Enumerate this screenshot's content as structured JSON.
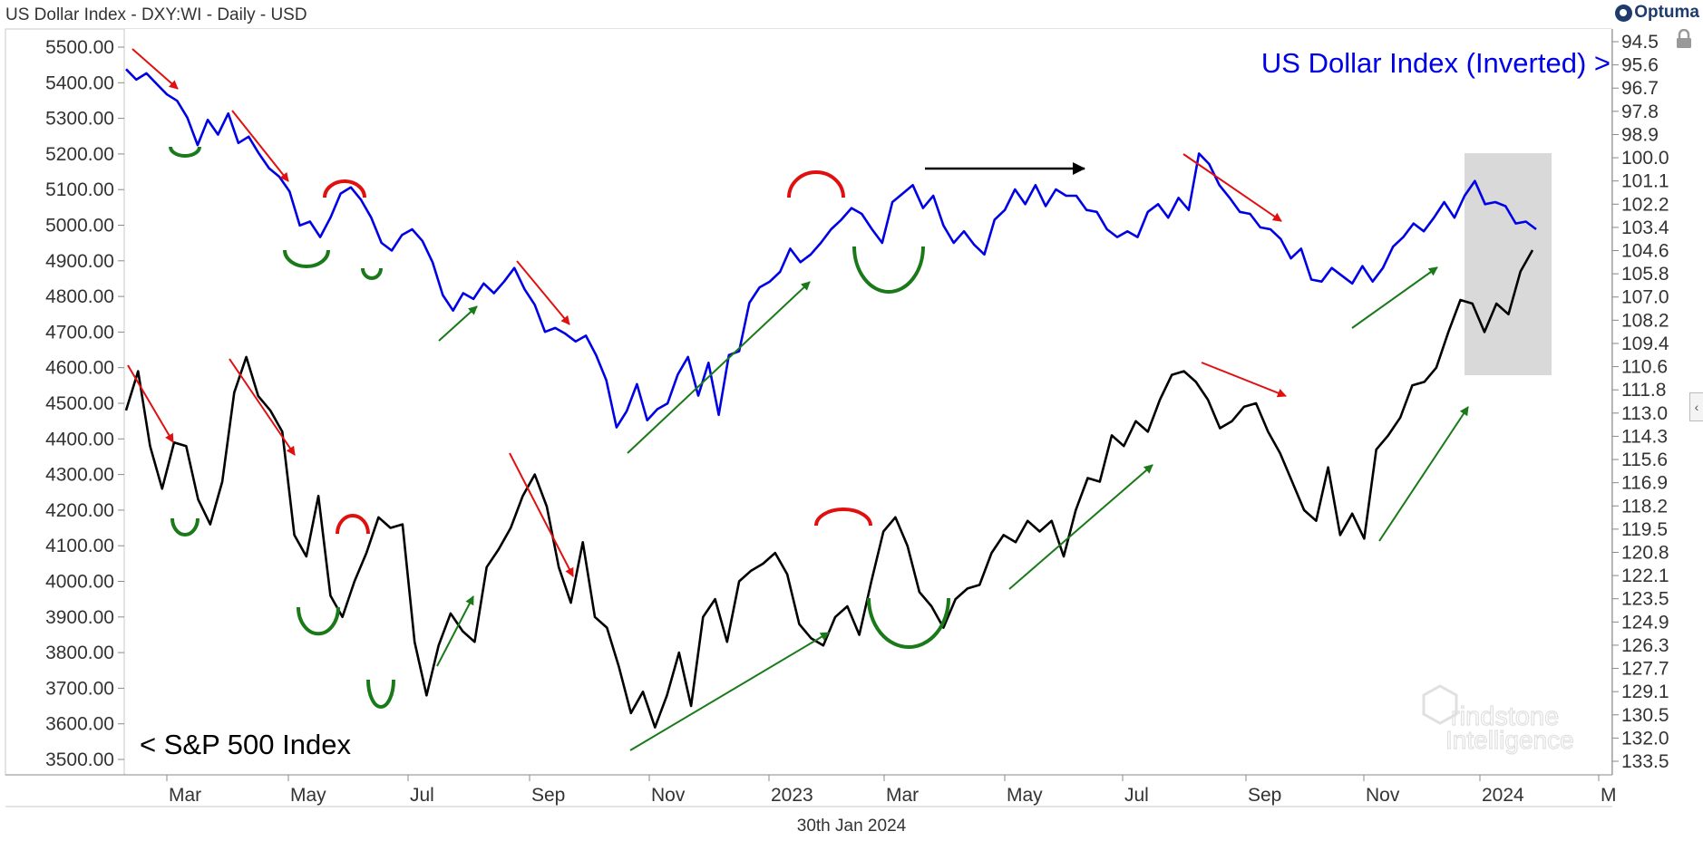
{
  "header": {
    "title": "US Dollar Index - DXY:WI - Daily - USD",
    "brand": "Optuma"
  },
  "footer": {
    "date_label": "30th Jan 2024"
  },
  "watermark": {
    "line1": "rindstone",
    "line2": "Intelligence"
  },
  "colors": {
    "dxy": "#0000e6",
    "spx": "#000000",
    "up_arrow": "#1a7a1a",
    "down_arrow": "#e01010",
    "highlight": "#d9d9d9"
  },
  "chart_data": {
    "type": "line",
    "x_ticks": [
      "Mar",
      "May",
      "Jul",
      "Sep",
      "Nov",
      "2023",
      "Mar",
      "May",
      "Jul",
      "Sep",
      "Nov",
      "2024",
      "M"
    ],
    "left_axis": {
      "ticks": [
        "5500.00",
        "5400.00",
        "5300.00",
        "5200.00",
        "5100.00",
        "5000.00",
        "4900.00",
        "4800.00",
        "4700.00",
        "4600.00",
        "4500.00",
        "4400.00",
        "4300.00",
        "4200.00",
        "4100.00",
        "4000.00",
        "3900.00",
        "3800.00",
        "3700.00",
        "3600.00",
        "3500.00"
      ],
      "range": [
        3500,
        5500
      ]
    },
    "right_axis": {
      "ticks": [
        "94.5",
        "95.6",
        "96.7",
        "97.8",
        "98.9",
        "100.0",
        "101.1",
        "102.2",
        "103.4",
        "104.6",
        "105.8",
        "107.0",
        "108.2",
        "109.4",
        "110.6",
        "111.8",
        "113.0",
        "114.3",
        "115.6",
        "116.9",
        "118.2",
        "119.5",
        "120.8",
        "122.1",
        "123.5",
        "124.9",
        "126.3",
        "127.7",
        "129.1",
        "130.5",
        "132.0",
        "133.5"
      ],
      "inverted": true
    },
    "series": [
      {
        "name": "US Dollar Index (Inverted) >",
        "axis": "right",
        "values": [
          95.8,
          96.3,
          96.0,
          96.5,
          97.0,
          97.3,
          98.1,
          99.4,
          98.2,
          98.9,
          97.9,
          99.3,
          99.0,
          99.8,
          100.5,
          100.9,
          101.6,
          103.3,
          103.1,
          103.9,
          102.9,
          101.7,
          101.4,
          102.0,
          102.9,
          104.2,
          104.6,
          103.8,
          103.5,
          104.1,
          105.2,
          106.9,
          107.7,
          106.8,
          107.1,
          106.3,
          106.8,
          106.2,
          105.5,
          106.6,
          107.4,
          108.8,
          108.6,
          108.9,
          109.3,
          109.0,
          110.0,
          111.3,
          113.8,
          112.9,
          111.5,
          113.4,
          112.8,
          112.5,
          111.0,
          110.1,
          112.1,
          110.4,
          113.1,
          110.0,
          109.8,
          107.3,
          106.5,
          106.2,
          105.7,
          104.5,
          105.2,
          104.8,
          104.2,
          103.5,
          103.0,
          102.4,
          102.7,
          103.5,
          104.2,
          102.1,
          101.7,
          101.3,
          102.4,
          101.8,
          103.3,
          104.2,
          103.6,
          104.3,
          104.8,
          103.0,
          102.5,
          101.5,
          102.2,
          101.3,
          102.3,
          101.5,
          101.8,
          101.8,
          102.5,
          102.6,
          103.5,
          103.9,
          103.6,
          103.9,
          102.6,
          102.2,
          102.9,
          101.9,
          102.5,
          99.8,
          100.3,
          101.3,
          101.9,
          102.6,
          102.7,
          103.4,
          103.5,
          104.0,
          105.0,
          104.5,
          106.1,
          106.2,
          105.5,
          105.9,
          106.3,
          105.4,
          106.2,
          105.5,
          104.4,
          103.9,
          103.2,
          103.6,
          102.9,
          102.1,
          102.9,
          101.8,
          101.1,
          102.2,
          102.1,
          102.3,
          103.2,
          103.1,
          103.5
        ]
      },
      {
        "name": "< S&P 500 Index",
        "axis": "left",
        "values": [
          4480,
          4590,
          4380,
          4260,
          4390,
          4380,
          4230,
          4160,
          4280,
          4530,
          4630,
          4520,
          4480,
          4420,
          4130,
          4070,
          4240,
          3960,
          3900,
          4000,
          4080,
          4180,
          4150,
          4160,
          3830,
          3680,
          3820,
          3910,
          3860,
          3830,
          4040,
          4090,
          4150,
          4240,
          4300,
          4210,
          4040,
          3940,
          4110,
          3900,
          3870,
          3760,
          3630,
          3690,
          3590,
          3680,
          3800,
          3650,
          3900,
          3950,
          3830,
          4000,
          4030,
          4050,
          4080,
          4020,
          3880,
          3840,
          3820,
          3900,
          3930,
          3850,
          4000,
          4140,
          4180,
          4100,
          3970,
          3930,
          3870,
          3950,
          3980,
          3990,
          4080,
          4130,
          4110,
          4170,
          4140,
          4170,
          4070,
          4200,
          4290,
          4280,
          4410,
          4380,
          4450,
          4420,
          4510,
          4580,
          4590,
          4560,
          4510,
          4430,
          4450,
          4490,
          4500,
          4420,
          4360,
          4280,
          4200,
          4170,
          4320,
          4130,
          4190,
          4120,
          4370,
          4410,
          4460,
          4550,
          4560,
          4600,
          4700,
          4790,
          4780,
          4700,
          4780,
          4750,
          4870,
          4930
        ]
      }
    ],
    "annotations": {
      "top_label": "US Dollar Index (Inverted) >",
      "bottom_label": "< S&P 500 Index"
    }
  }
}
